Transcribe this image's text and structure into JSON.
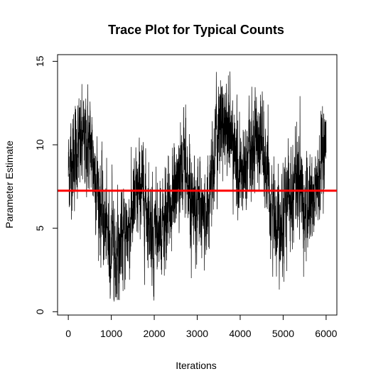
{
  "chart_data": {
    "type": "line",
    "title": "Trace Plot for Typical Counts",
    "xlabel": "Iterations",
    "ylabel": "Parameter Estimate",
    "xlim": [
      -250,
      6250
    ],
    "ylim": [
      -0.2,
      15.4
    ],
    "x_ticks": [
      0,
      1000,
      2000,
      3000,
      4000,
      5000,
      6000
    ],
    "y_ticks": [
      0,
      5,
      10,
      15
    ],
    "x_tick_labels": [
      "0",
      "1000",
      "2000",
      "3000",
      "4000",
      "5000",
      "6000"
    ],
    "y_tick_labels": [
      "0",
      "5",
      "10",
      "15"
    ],
    "grid": false,
    "series": [
      {
        "color": "#000000",
        "noise_sd": 1.3,
        "n_iterations": 6000,
        "trend_points": [
          [
            0,
            8.5
          ],
          [
            150,
            9.5
          ],
          [
            300,
            10.0
          ],
          [
            450,
            10.2
          ],
          [
            550,
            9.5
          ],
          [
            650,
            8.0
          ],
          [
            800,
            5.5
          ],
          [
            950,
            4.2
          ],
          [
            1100,
            4.0
          ],
          [
            1250,
            4.2
          ],
          [
            1400,
            5.0
          ],
          [
            1550,
            6.5
          ],
          [
            1700,
            7.5
          ],
          [
            1850,
            6.0
          ],
          [
            2000,
            4.5
          ],
          [
            2150,
            4.5
          ],
          [
            2300,
            5.5
          ],
          [
            2450,
            7.0
          ],
          [
            2600,
            8.5
          ],
          [
            2700,
            9.0
          ],
          [
            2850,
            7.0
          ],
          [
            3000,
            6.5
          ],
          [
            3150,
            5.5
          ],
          [
            3250,
            6.5
          ],
          [
            3350,
            8.5
          ],
          [
            3450,
            10.5
          ],
          [
            3600,
            11.5
          ],
          [
            3750,
            11.0
          ],
          [
            3850,
            9.5
          ],
          [
            3950,
            8.5
          ],
          [
            4100,
            8.0
          ],
          [
            4200,
            9.0
          ],
          [
            4350,
            10.5
          ],
          [
            4500,
            10.5
          ],
          [
            4600,
            8.0
          ],
          [
            4700,
            6.5
          ],
          [
            4850,
            5.5
          ],
          [
            5000,
            6.0
          ],
          [
            5150,
            7.0
          ],
          [
            5300,
            8.0
          ],
          [
            5400,
            7.5
          ],
          [
            5500,
            6.0
          ],
          [
            5650,
            6.5
          ],
          [
            5800,
            7.5
          ],
          [
            5900,
            8.5
          ],
          [
            6000,
            8.8
          ]
        ]
      }
    ],
    "reference_line": {
      "y": 7.25,
      "color": "#ff0000"
    }
  }
}
